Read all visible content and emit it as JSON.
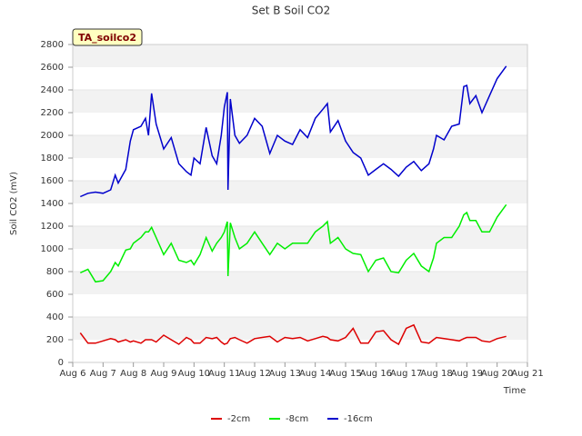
{
  "chart_data": {
    "type": "line",
    "title": "Set B Soil CO2",
    "xlabel": "Time",
    "ylabel": "Soil CO2 (mV)",
    "annotation": "TA_soilco2",
    "x": [
      6.25,
      6.5,
      6.75,
      7,
      7.25,
      7.4,
      7.5,
      7.75,
      7.9,
      8,
      8.25,
      8.4,
      8.5,
      8.6,
      8.75,
      9,
      9.25,
      9.5,
      9.75,
      9.9,
      10,
      10.2,
      10.4,
      10.6,
      10.75,
      10.9,
      11,
      11.1,
      11.12,
      11.2,
      11.35,
      11.5,
      11.75,
      12,
      12.25,
      12.5,
      12.75,
      13,
      13.25,
      13.5,
      13.75,
      14,
      14.25,
      14.4,
      14.5,
      14.75,
      15,
      15.25,
      15.5,
      15.75,
      16,
      16.25,
      16.5,
      16.75,
      17,
      17.25,
      17.5,
      17.75,
      17.9,
      18,
      18.25,
      18.5,
      18.75,
      18.9,
      19,
      19.1,
      19.3,
      19.5,
      19.75,
      20,
      20.3
    ],
    "series": [
      {
        "name": "-2cm",
        "color": "#dd0000",
        "values": [
          260,
          170,
          170,
          190,
          210,
          200,
          180,
          200,
          180,
          190,
          170,
          200,
          200,
          200,
          180,
          240,
          200,
          160,
          220,
          200,
          170,
          170,
          220,
          210,
          220,
          180,
          160,
          170,
          180,
          210,
          220,
          200,
          170,
          210,
          220,
          230,
          180,
          220,
          210,
          220,
          190,
          210,
          230,
          220,
          200,
          190,
          220,
          300,
          170,
          170,
          270,
          280,
          200,
          160,
          300,
          330,
          180,
          170,
          200,
          220,
          210,
          200,
          190,
          210,
          220,
          220,
          220,
          190,
          180,
          210,
          230
        ]
      },
      {
        "name": "-8cm",
        "color": "#00ee00",
        "values": [
          790,
          820,
          710,
          720,
          800,
          880,
          850,
          990,
          1000,
          1050,
          1100,
          1150,
          1150,
          1190,
          1100,
          950,
          1050,
          900,
          880,
          900,
          860,
          950,
          1100,
          980,
          1050,
          1100,
          1150,
          1240,
          760,
          1230,
          1100,
          1000,
          1050,
          1150,
          1050,
          950,
          1050,
          1000,
          1050,
          1050,
          1050,
          1150,
          1200,
          1240,
          1050,
          1100,
          1000,
          960,
          950,
          800,
          900,
          920,
          800,
          790,
          900,
          960,
          850,
          800,
          920,
          1050,
          1100,
          1100,
          1200,
          1300,
          1320,
          1250,
          1250,
          1150,
          1150,
          1280,
          1390
        ]
      },
      {
        "name": "-16cm",
        "color": "#0000cc",
        "values": [
          1460,
          1490,
          1500,
          1490,
          1520,
          1650,
          1580,
          1700,
          1950,
          2050,
          2080,
          2150,
          2000,
          2370,
          2100,
          1880,
          1980,
          1750,
          1680,
          1650,
          1800,
          1750,
          2070,
          1820,
          1750,
          2000,
          2250,
          2380,
          1520,
          2320,
          2000,
          1930,
          2000,
          2150,
          2080,
          1840,
          2000,
          1950,
          1920,
          2050,
          1980,
          2150,
          2230,
          2280,
          2030,
          2130,
          1950,
          1850,
          1800,
          1650,
          1700,
          1750,
          1700,
          1640,
          1720,
          1770,
          1690,
          1750,
          1880,
          2000,
          1960,
          2080,
          2100,
          2430,
          2440,
          2280,
          2350,
          2200,
          2350,
          2500,
          2610
        ]
      }
    ],
    "xlim": [
      6,
      21
    ],
    "xticks": [
      {
        "value": 6,
        "label": "Aug 6"
      },
      {
        "value": 7,
        "label": "Aug 7"
      },
      {
        "value": 8,
        "label": "Aug 8"
      },
      {
        "value": 9,
        "label": "Aug 9"
      },
      {
        "value": 10,
        "label": "Aug 10"
      },
      {
        "value": 11,
        "label": "Aug 11"
      },
      {
        "value": 12,
        "label": "Aug 12"
      },
      {
        "value": 13,
        "label": "Aug 13"
      },
      {
        "value": 14,
        "label": "Aug 14"
      },
      {
        "value": 15,
        "label": "Aug 15"
      },
      {
        "value": 16,
        "label": "Aug 16"
      },
      {
        "value": 17,
        "label": "Aug 17"
      },
      {
        "value": 18,
        "label": "Aug 18"
      },
      {
        "value": 19,
        "label": "Aug 19"
      },
      {
        "value": 20,
        "label": "Aug 20"
      },
      {
        "value": 21,
        "label": "Aug 21"
      }
    ],
    "ylim": [
      0,
      2800
    ],
    "yticks": [
      0,
      200,
      400,
      600,
      800,
      1000,
      1200,
      1400,
      1600,
      1800,
      2000,
      2200,
      2400,
      2600,
      2800
    ],
    "grid": true,
    "legend": "bottom"
  }
}
